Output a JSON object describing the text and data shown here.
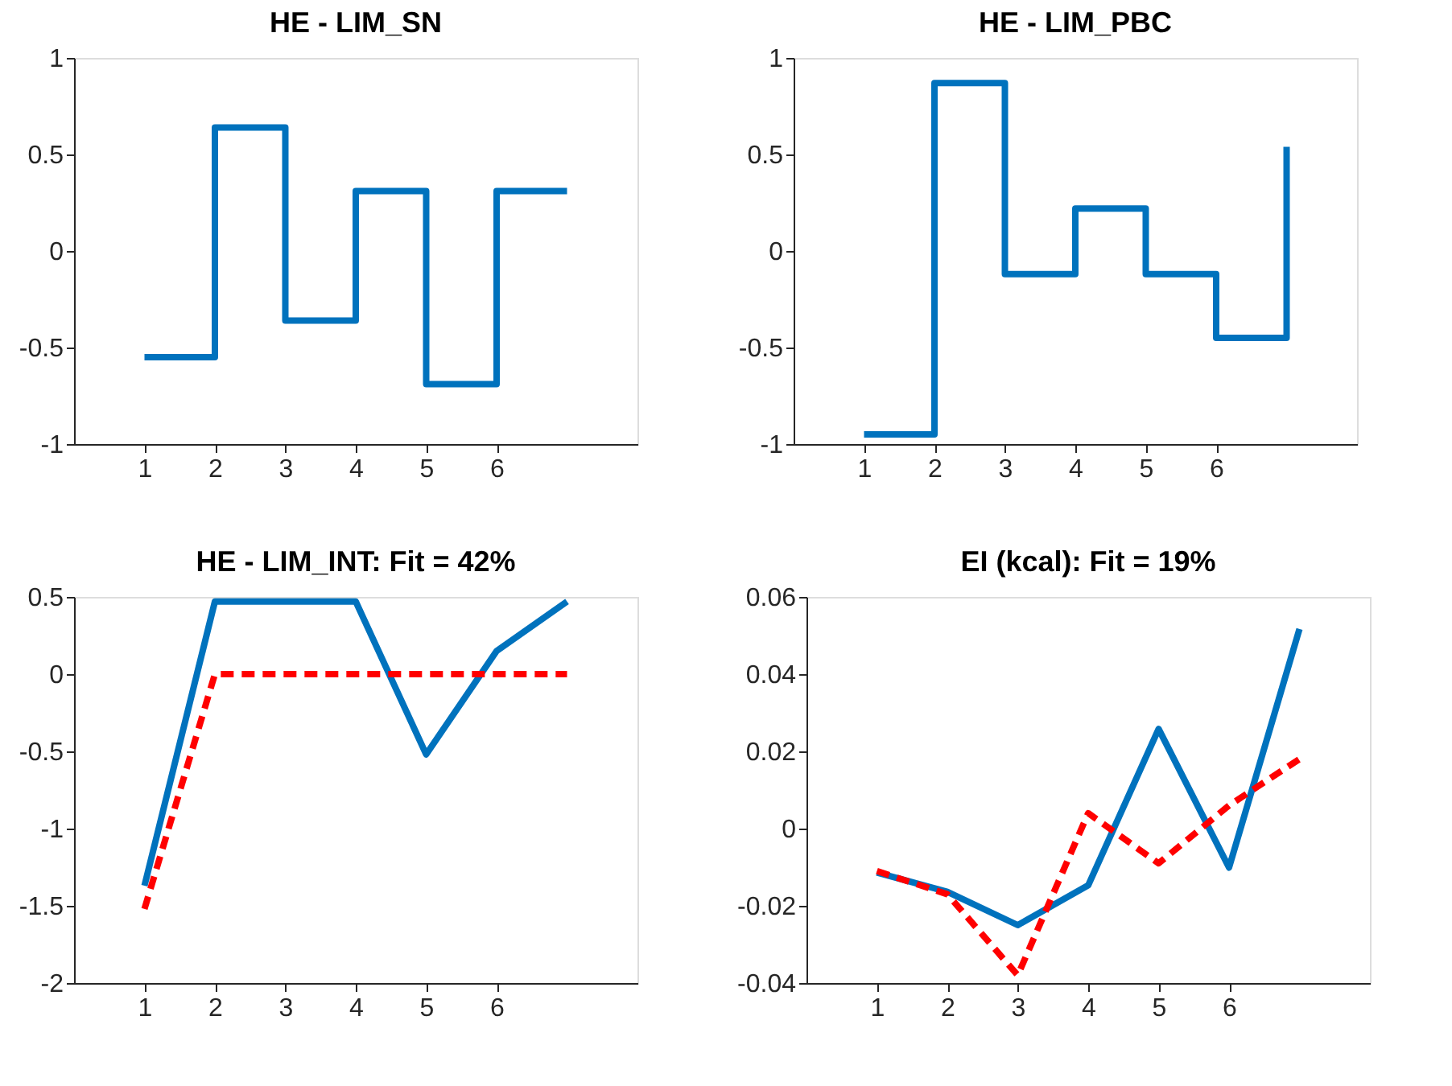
{
  "chart_data": [
    {
      "type": "step",
      "title": "HE - LIM_SN",
      "x": [
        1,
        2,
        3,
        4,
        5,
        6,
        7
      ],
      "xlim": [
        0,
        8
      ],
      "xticks": [
        1,
        2,
        3,
        4,
        5,
        6
      ],
      "ylim": [
        -1,
        1
      ],
      "yticks": [
        -1,
        -0.5,
        0,
        0.5,
        1
      ],
      "grid": false,
      "legend": false,
      "series": [
        {
          "color": "#0072bd",
          "values": [
            -0.55,
            0.64,
            -0.36,
            0.31,
            -0.69,
            0.31,
            0.31
          ]
        }
      ]
    },
    {
      "type": "step",
      "title": "HE - LIM_PBC",
      "x": [
        1,
        2,
        3,
        4,
        5,
        6,
        7
      ],
      "xlim": [
        0,
        8
      ],
      "xticks": [
        1,
        2,
        3,
        4,
        5,
        6
      ],
      "ylim": [
        -1,
        1
      ],
      "yticks": [
        -1,
        -0.5,
        0,
        0.5,
        1
      ],
      "grid": false,
      "legend": false,
      "series": [
        {
          "color": "#0072bd",
          "values": [
            -0.95,
            0.87,
            -0.12,
            0.22,
            -0.12,
            -0.45,
            0.54
          ]
        }
      ]
    },
    {
      "type": "line",
      "title": "HE - LIM_INT: Fit = 42%",
      "x": [
        1,
        2,
        3,
        4,
        5,
        6,
        7
      ],
      "xlim": [
        0,
        8
      ],
      "xticks": [
        1,
        2,
        3,
        4,
        5,
        6
      ],
      "ylim": [
        -2,
        0.5
      ],
      "yticks": [
        -2,
        -1.5,
        -1,
        -0.5,
        0,
        0.5
      ],
      "grid": false,
      "legend": false,
      "series": [
        {
          "color": "#0072bd",
          "line_style": "solid",
          "values": [
            -1.37,
            0.47,
            0.47,
            0.47,
            -0.52,
            0.15,
            0.47
          ]
        },
        {
          "color": "#ff0000",
          "line_style": "dashed",
          "values": [
            -1.52,
            0,
            0,
            0,
            0,
            0,
            0
          ]
        }
      ]
    },
    {
      "type": "line",
      "title": "EI (kcal): Fit = 19%",
      "x": [
        1,
        2,
        3,
        4,
        5,
        6,
        7
      ],
      "xlim": [
        0,
        8
      ],
      "xticks": [
        1,
        2,
        3,
        4,
        5,
        6
      ],
      "ylim": [
        -0.04,
        0.06
      ],
      "yticks": [
        -0.04,
        -0.02,
        0,
        0.02,
        0.04,
        0.06
      ],
      "grid": false,
      "legend": false,
      "series": [
        {
          "color": "#0072bd",
          "line_style": "solid",
          "values": [
            -0.0114,
            -0.0164,
            -0.025,
            -0.0147,
            0.0258,
            -0.0101,
            0.0517
          ]
        },
        {
          "color": "#ff0000",
          "line_style": "dashed",
          "values": [
            -0.011,
            -0.017,
            -0.038,
            0.004,
            -0.009,
            0.006,
            0.018
          ]
        }
      ]
    }
  ]
}
